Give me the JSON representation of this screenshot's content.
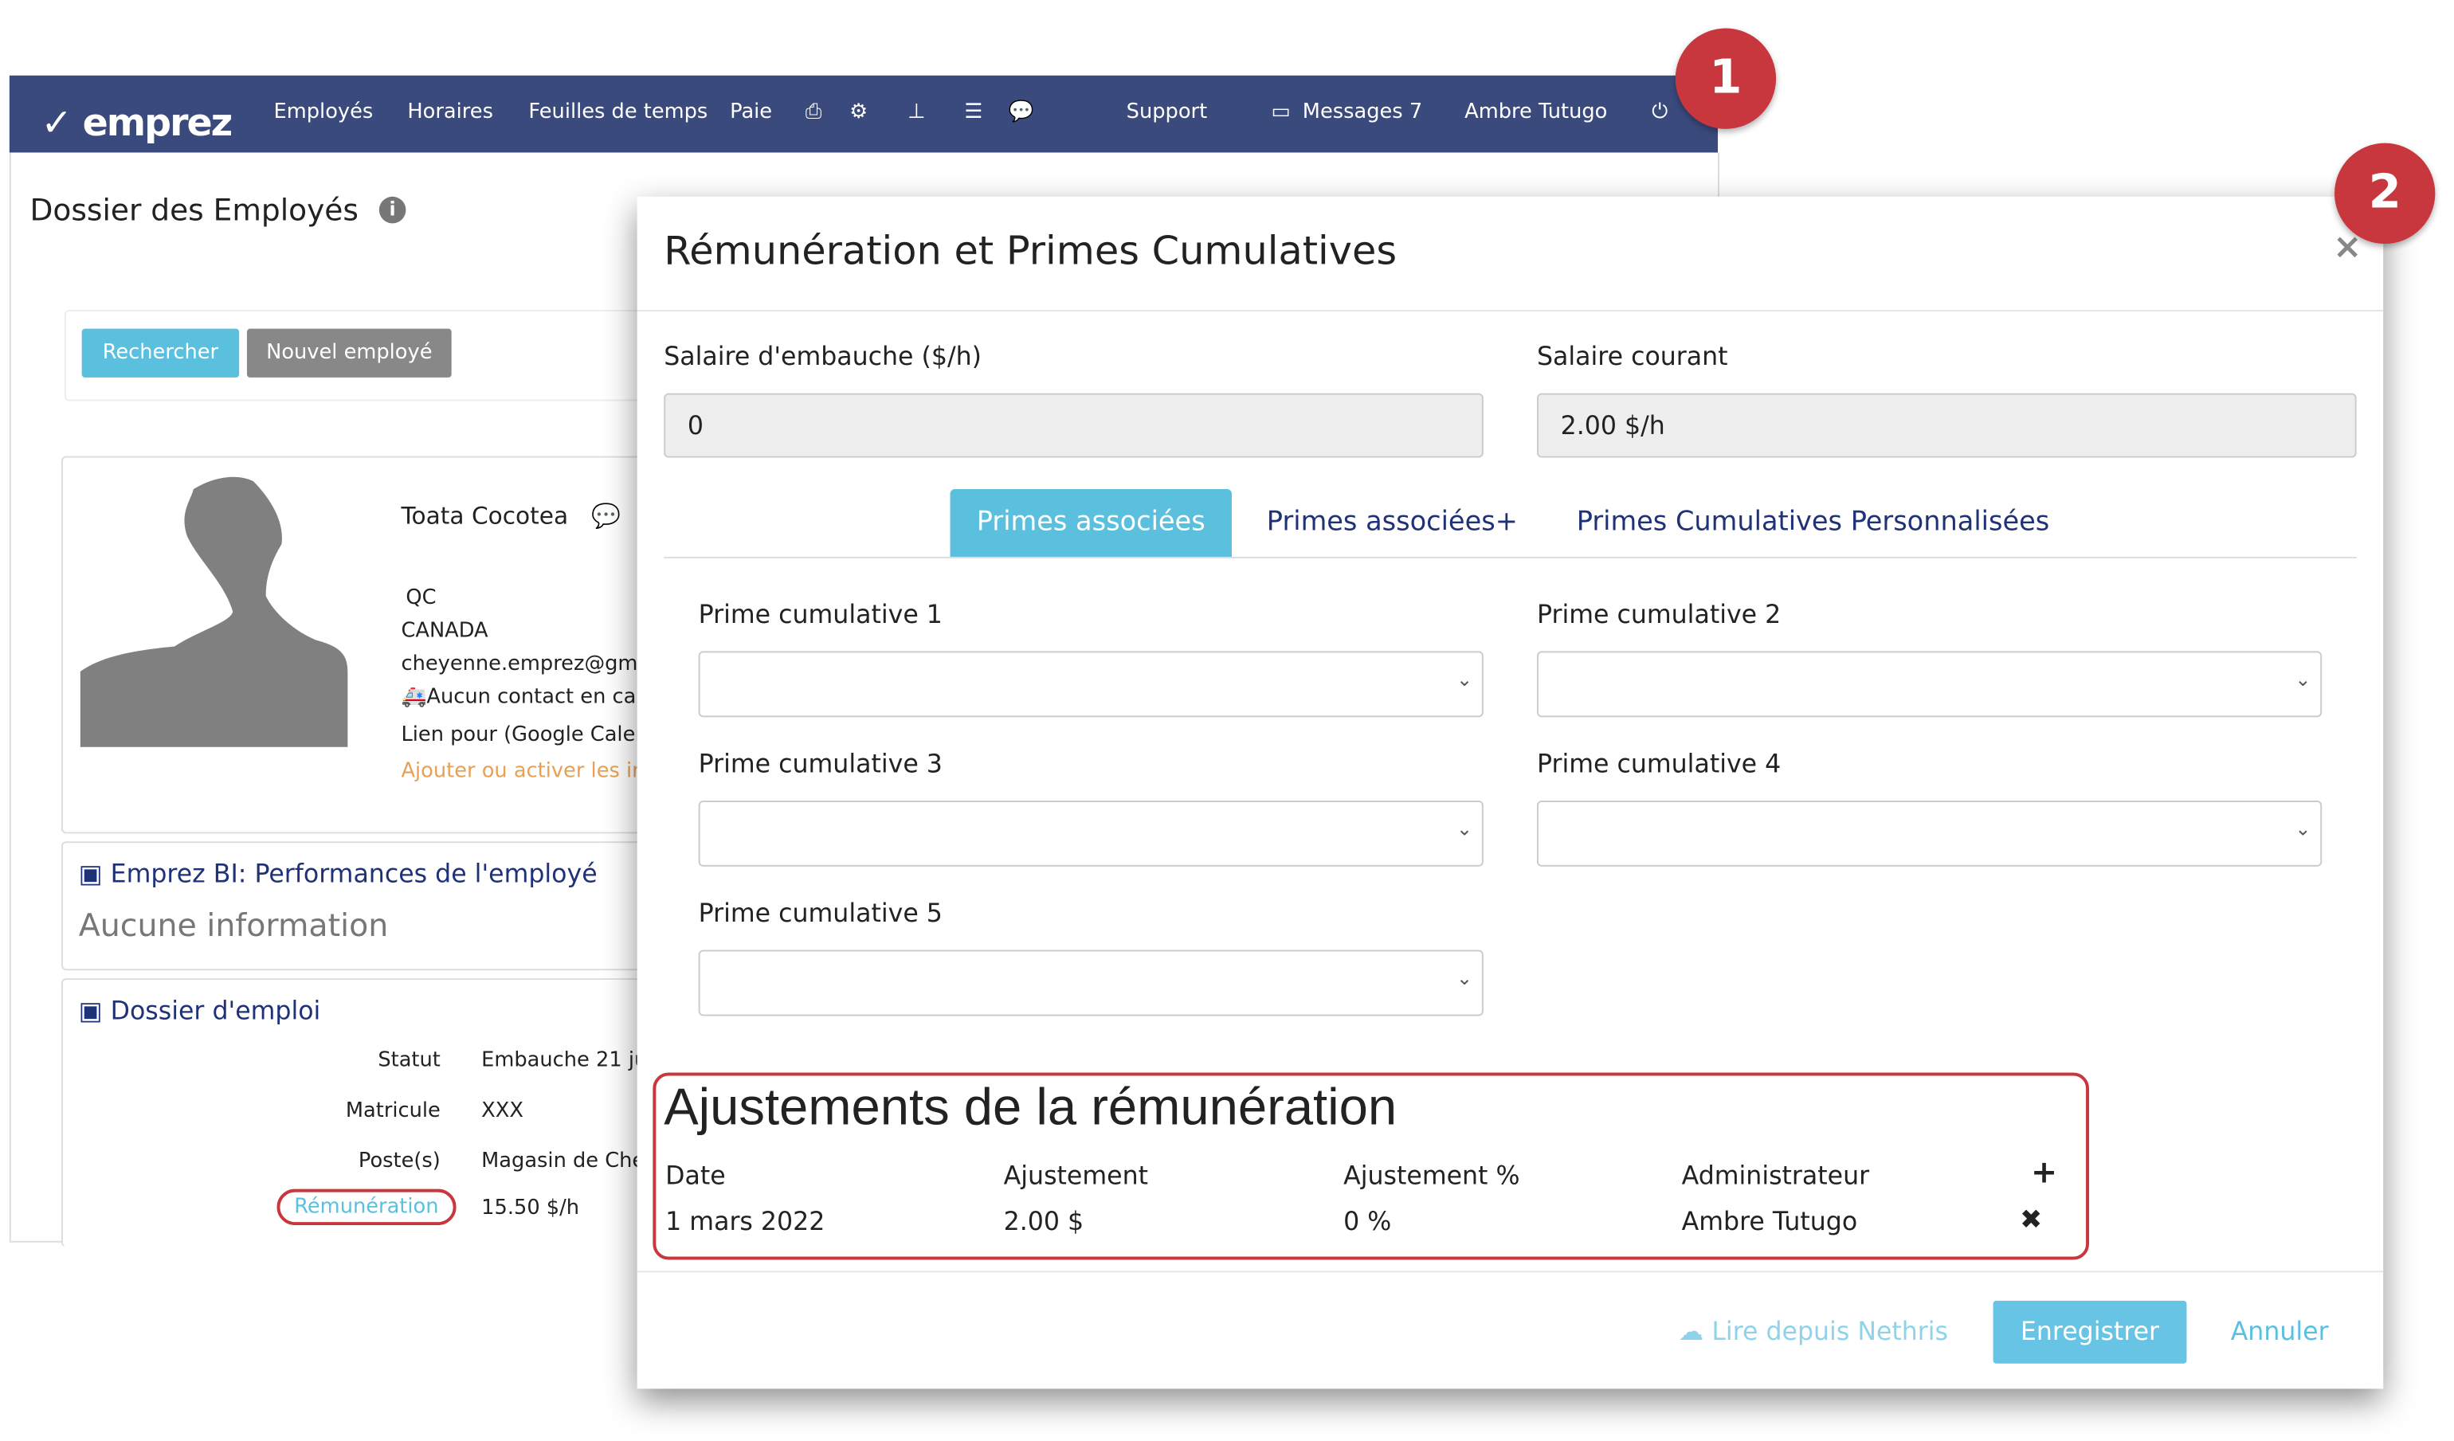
{
  "nav": {
    "brand": "emprez",
    "items": [
      "Employés",
      "Horaires",
      "Feuilles de temps",
      "Paie"
    ],
    "icons": [
      "print-icon",
      "cogs-icon",
      "sitemap-icon",
      "list-icon",
      "comments-icon"
    ],
    "support": "Support",
    "messages": "Messages 7",
    "user": "Ambre Tutugo",
    "color": "#3a4a7c"
  },
  "page": {
    "title": "Dossier des Employés",
    "search_button": "Rechercher",
    "new_button": "Nouvel employé",
    "employee": {
      "name": "Toata Cocotea",
      "province": "QC",
      "country": "CANADA",
      "email": "cheyenne.emprez@gm",
      "emergency": "Aucun contact en ca",
      "calendar": "Lien pour (Google Calen",
      "activate_link": "Ajouter ou activer les in"
    },
    "bi_section": {
      "title": "Emprez BI: Performances de l'employé",
      "empty": "Aucune information"
    },
    "job_section": {
      "title": "Dossier d'emploi",
      "rows": [
        {
          "label": "Statut",
          "value": "Embauche 21 ju"
        },
        {
          "label": "Matricule",
          "value": "XXX"
        },
        {
          "label": "Poste(s)",
          "value": "Magasin de Che"
        },
        {
          "label": "Rémunération",
          "value": "15.50 $/h"
        }
      ]
    }
  },
  "modal": {
    "title": "Rémunération et Primes Cumulatives",
    "close": "×",
    "hiring_salary_label": "Salaire d'embauche ($/h)",
    "hiring_salary_value": "0",
    "current_salary_label": "Salaire courant",
    "current_salary_value": "2.00 $/h",
    "tabs": [
      {
        "label": "Primes associées",
        "active": true
      },
      {
        "label": "Primes associées+"
      },
      {
        "label": "Primes Cumulatives Personnalisées"
      }
    ],
    "primes": [
      "Prime cumulative 1",
      "Prime cumulative 2",
      "Prime cumulative 3",
      "Prime cumulative 4",
      "Prime cumulative 5"
    ],
    "adjustments": {
      "title": "Ajustements de la rémunération",
      "columns": [
        "Date",
        "Ajustement",
        "Ajustement %",
        "Administrateur"
      ],
      "rows": [
        {
          "date": "1 mars 2022",
          "amount": "2.00 $",
          "percent": "0 %",
          "admin": "Ambre Tutugo"
        }
      ]
    },
    "footer": {
      "nethris": "Lire depuis Nethris",
      "save": "Enregistrer",
      "cancel": "Annuler"
    },
    "accent": "#5bc0de"
  },
  "annotations": [
    "1",
    "2"
  ],
  "highlight_color": "#c8373d"
}
